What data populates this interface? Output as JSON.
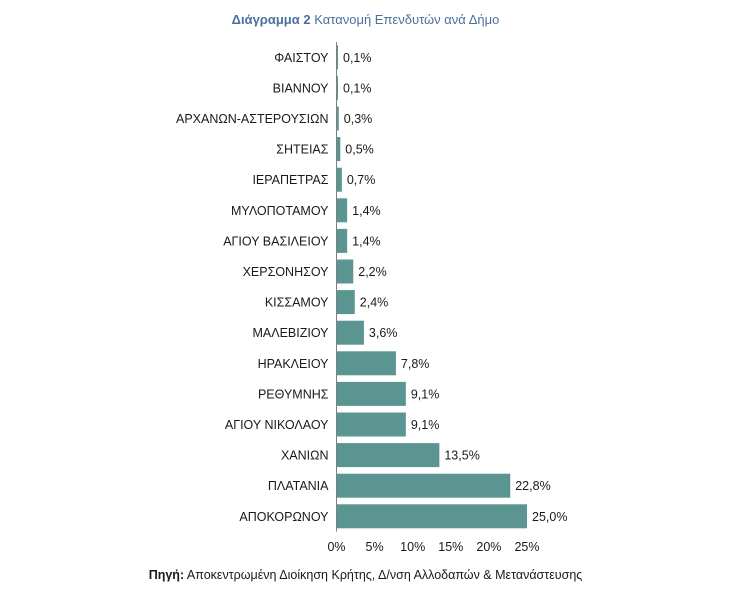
{
  "title_prefix": "Διάγραμμα",
  "title_number": "2",
  "title_text": "Κατανομή Επενδυτών ανά Δήμο",
  "source_label": "Πηγή:",
  "source_text": "Αποκεντρωμένη Διοίκηση Κρήτης, Δ/νση Αλλοδαπών & Μετανάστευσης",
  "colors": {
    "bar": "#5b9592",
    "title": "#4a6f9c",
    "text": "#1a1a1a"
  },
  "chart_data": {
    "type": "bar",
    "orientation": "horizontal",
    "title": "Διάγραμμα 2 Κατανομή Επενδυτών ανά Δήμο",
    "categories": [
      "ΦΑΙΣΤΟΥ",
      "ΒΙΑΝΝΟΥ",
      "ΑΡΧΑΝΩΝ-ΑΣΤΕΡΟΥΣΙΩΝ",
      "ΣΗΤΕΙΑΣ",
      "ΙΕΡΑΠΕΤΡΑΣ",
      "ΜΥΛΟΠΟΤΑΜΟΥ",
      "ΑΓΙΟΥ ΒΑΣΙΛΕΙΟΥ",
      "ΧΕΡΣΟΝΗΣΟΥ",
      "ΚΙΣΣΑΜΟΥ",
      "ΜΑΛΕΒΙΖΙΟΥ",
      "ΗΡΑΚΛΕΙΟΥ",
      "ΡΕΘΥΜΝΗΣ",
      "ΑΓΙΟΥ ΝΙΚΟΛΑΟΥ",
      "ΧΑΝΙΩΝ",
      "ΠΛΑΤΑΝΙΑ",
      "ΑΠΟΚΟΡΩΝΟΥ"
    ],
    "values": [
      0.1,
      0.1,
      0.3,
      0.5,
      0.7,
      1.4,
      1.4,
      2.2,
      2.4,
      3.6,
      7.8,
      9.1,
      9.1,
      13.5,
      22.8,
      25.0
    ],
    "data_labels": [
      "0,1%",
      "0,1%",
      "0,3%",
      "0,5%",
      "0,7%",
      "1,4%",
      "1,4%",
      "2,2%",
      "2,4%",
      "3,6%",
      "7,8%",
      "9,1%",
      "9,1%",
      "13,5%",
      "22,8%",
      "25,0%"
    ],
    "xlim": [
      0,
      25
    ],
    "xticks": [
      0,
      5,
      10,
      15,
      20,
      25
    ],
    "xtick_labels": [
      "0%",
      "5%",
      "10%",
      "15%",
      "20%",
      "25%"
    ],
    "grid": false,
    "legend": "none"
  }
}
